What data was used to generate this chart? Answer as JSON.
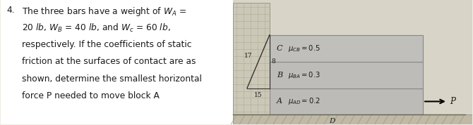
{
  "title_num": "4.",
  "text_lines": [
    "The three bars have a weight of $W_A$ =",
    "20 $lb$, $W_B$ = 40 $lb$, and $W_c$ = 60 $lb$,",
    "respectively. If the coefficients of static",
    "friction at the surfaces of contact are as",
    "shown, determine the smallest horizontal",
    "force P needed to move block A"
  ],
  "block_fill_C": "#c0bfbc",
  "block_fill_B": "#bebcb9",
  "block_fill_A": "#bdbbb8",
  "block_edge": "#888888",
  "wall_fill": "#ccc8b8",
  "wall_edge": "#999980",
  "ground_fill": "#bfb9a5",
  "bg_color": "#e8e5dc",
  "label_C": "C",
  "label_B": "B",
  "label_A": "A",
  "label_D": "D",
  "mu_CB": "$\\mu_{CB}=0.5$",
  "mu_BA": "$\\mu_{BA}=0.3$",
  "mu_AD": "$\\mu_{AD}=0.2$",
  "dim_17": "17",
  "dim_8": "8",
  "dim_15": "15",
  "text_color": "#1a1a1a",
  "fontsize_text": 8.8,
  "fontsize_diag": 7.5,
  "fontsize_mu": 7.2
}
